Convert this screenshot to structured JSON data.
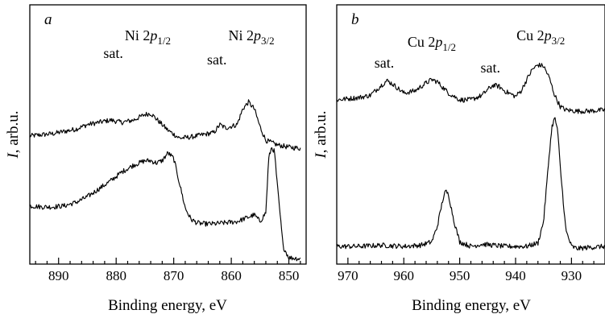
{
  "chart_data": [
    {
      "panel": "a",
      "type": "line",
      "xlabel": "Binding energy, eV",
      "ylabel_italic": "I",
      "ylabel_rest": ", arb.u.",
      "xlim": [
        895,
        847
      ],
      "x_reversed": true,
      "x_ticks": [
        890,
        880,
        870,
        860,
        850
      ],
      "grid": false,
      "y_ticks": false,
      "series": [
        {
          "x": [
            895,
            893,
            891,
            889,
            887,
            885,
            883,
            881,
            879,
            877,
            875,
            874,
            873,
            871,
            869,
            867,
            865,
            863,
            862,
            861,
            859,
            858,
            857,
            856,
            855,
            854,
            852,
            850,
            848
          ],
          "y": [
            0.54,
            0.545,
            0.55,
            0.56,
            0.57,
            0.59,
            0.6,
            0.61,
            0.6,
            0.61,
            0.635,
            0.64,
            0.615,
            0.565,
            0.53,
            0.535,
            0.545,
            0.555,
            0.59,
            0.575,
            0.59,
            0.66,
            0.69,
            0.66,
            0.58,
            0.52,
            0.5,
            0.49,
            0.485
          ]
        },
        {
          "x": [
            895,
            893,
            891,
            889,
            887,
            885,
            883,
            881,
            879,
            877,
            875,
            874,
            873,
            872,
            871,
            870,
            869,
            868,
            867,
            866,
            865,
            863,
            861,
            859,
            857,
            856,
            855,
            854,
            853.5,
            853,
            852.5,
            852,
            851,
            850,
            848
          ],
          "y": [
            0.23,
            0.225,
            0.225,
            0.23,
            0.245,
            0.27,
            0.305,
            0.34,
            0.38,
            0.41,
            0.43,
            0.43,
            0.42,
            0.43,
            0.465,
            0.44,
            0.33,
            0.22,
            0.17,
            0.155,
            0.15,
            0.15,
            0.155,
            0.16,
            0.18,
            0.19,
            0.16,
            0.2,
            0.44,
            0.49,
            0.47,
            0.32,
            0.05,
            0.0,
            -0.005
          ]
        }
      ],
      "annotations": [
        {
          "text": "sat.",
          "x": 880.5
        },
        {
          "text": "Ni 2",
          "italic": "p",
          "sub": "1/2",
          "x": 874.5
        },
        {
          "text": "sat.",
          "x": 862.5
        },
        {
          "text": "Ni 2",
          "italic": "p",
          "sub": "3/2",
          "x": 856.5
        }
      ]
    },
    {
      "panel": "b",
      "type": "line",
      "xlabel": "Binding energy, eV",
      "ylabel_italic": "I",
      "ylabel_rest": ", arb.u.",
      "xlim": [
        972,
        924
      ],
      "x_reversed": true,
      "x_ticks": [
        970,
        960,
        950,
        940,
        930
      ],
      "grid": false,
      "y_ticks": false,
      "series": [
        {
          "x": [
            972,
            970,
            968,
            966,
            964,
            963,
            962,
            960,
            958,
            956,
            955,
            954,
            952,
            950,
            948,
            946,
            945,
            944,
            943,
            942,
            940,
            939,
            938,
            937,
            936,
            935,
            934,
            933,
            932,
            931,
            929,
            927,
            924
          ],
          "y": [
            0.7,
            0.705,
            0.71,
            0.72,
            0.765,
            0.785,
            0.77,
            0.73,
            0.74,
            0.775,
            0.79,
            0.78,
            0.73,
            0.7,
            0.7,
            0.72,
            0.745,
            0.765,
            0.76,
            0.74,
            0.715,
            0.74,
            0.79,
            0.835,
            0.855,
            0.85,
            0.8,
            0.72,
            0.67,
            0.655,
            0.65,
            0.65,
            0.655
          ]
        },
        {
          "x": [
            972,
            968,
            964,
            960,
            957,
            955,
            954,
            953,
            952.5,
            952,
            951,
            950,
            948,
            946,
            944,
            942,
            940,
            938,
            936,
            935,
            934,
            933.5,
            933,
            932.5,
            932,
            931,
            930,
            929,
            927,
            924
          ],
          "y": [
            0.05,
            0.05,
            0.055,
            0.05,
            0.055,
            0.07,
            0.14,
            0.26,
            0.295,
            0.28,
            0.16,
            0.07,
            0.05,
            0.06,
            0.055,
            0.05,
            0.05,
            0.05,
            0.065,
            0.16,
            0.45,
            0.58,
            0.62,
            0.57,
            0.4,
            0.12,
            0.05,
            0.04,
            0.045,
            0.05
          ]
        }
      ],
      "annotations": [
        {
          "text": "sat.",
          "x": 963.5
        },
        {
          "text": "Cu 2",
          "italic": "p",
          "sub": "1/2",
          "x": 955
        },
        {
          "text": "sat.",
          "x": 944.5
        },
        {
          "text": "Cu 2",
          "italic": "p",
          "sub": "3/2",
          "x": 935.5
        }
      ]
    }
  ]
}
